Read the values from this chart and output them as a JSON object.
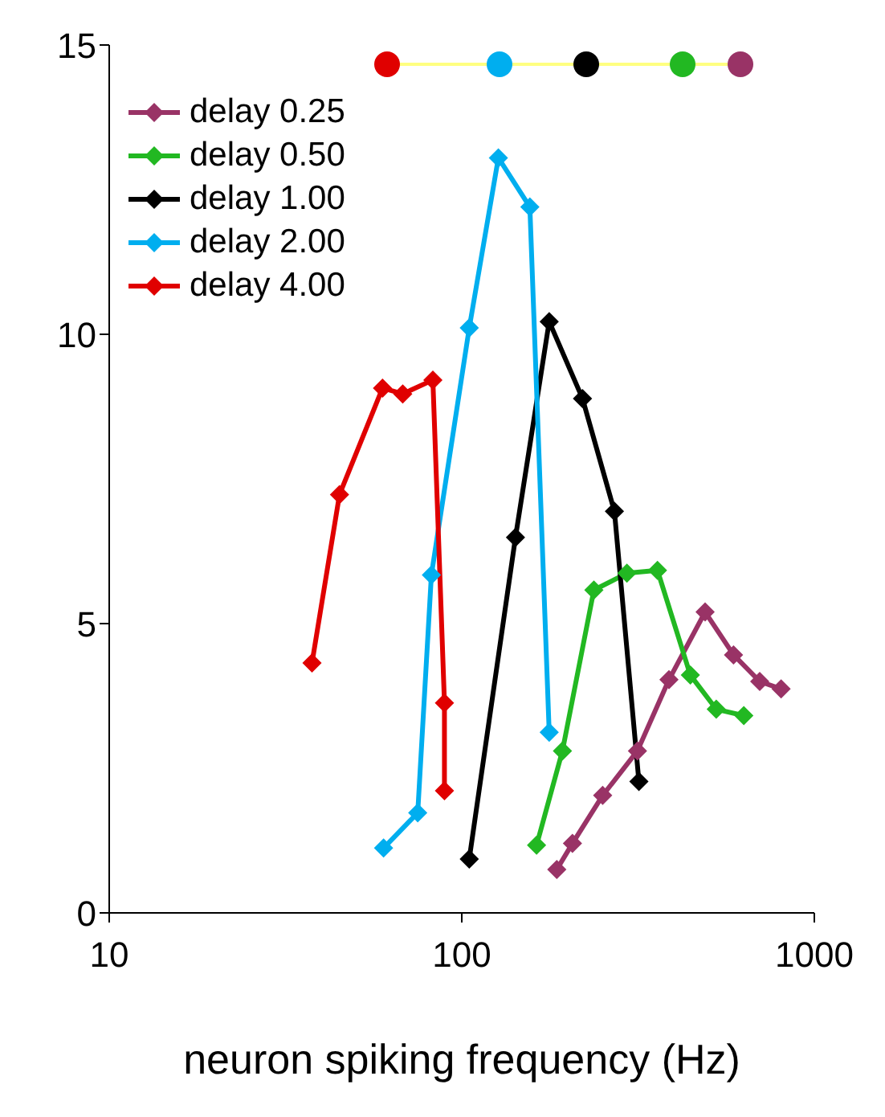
{
  "chart_data": {
    "type": "line",
    "xlabel": "neuron spiking frequency (Hz)",
    "log": "x",
    "xlim": [
      10,
      1000
    ],
    "xticks": [
      10,
      100,
      1000
    ],
    "ylim": [
      0,
      15
    ],
    "yticks": [
      0,
      5,
      10,
      15
    ],
    "grid": false,
    "legend": "top left",
    "marker": "diamond",
    "line_style": "solid",
    "series": [
      {
        "name": "delay 0.25",
        "color": "#993366",
        "x": [
          186,
          206,
          251,
          315,
          387,
          490,
          590,
          700,
          805
        ],
        "values": [
          0.75,
          1.2,
          2.03,
          2.8,
          4.03,
          5.2,
          4.46,
          4.0,
          3.87
        ]
      },
      {
        "name": "delay 0.50",
        "color": "#22b822",
        "x": [
          163,
          193,
          237,
          294,
          359,
          445,
          527,
          631
        ],
        "values": [
          1.17,
          2.8,
          5.58,
          5.87,
          5.92,
          4.11,
          3.52,
          3.41
        ]
      },
      {
        "name": "delay 1.00",
        "color": "#000000",
        "x": [
          105,
          142,
          177,
          220,
          271,
          318
        ],
        "values": [
          0.93,
          6.49,
          10.22,
          8.89,
          6.94,
          2.27
        ]
      },
      {
        "name": "delay 2.00",
        "color": "#00aeef",
        "x": [
          60,
          75,
          82,
          105,
          127,
          156,
          177
        ],
        "values": [
          1.12,
          1.73,
          5.84,
          10.11,
          13.05,
          12.2,
          3.12
        ]
      },
      {
        "name": "delay 4.00",
        "color": "#e00000",
        "x": [
          37.6,
          45,
          59.6,
          68,
          82.8,
          89.3,
          89.3
        ],
        "values": [
          4.32,
          7.23,
          9.07,
          8.97,
          9.21,
          3.63,
          2.11
        ]
      }
    ]
  }
}
